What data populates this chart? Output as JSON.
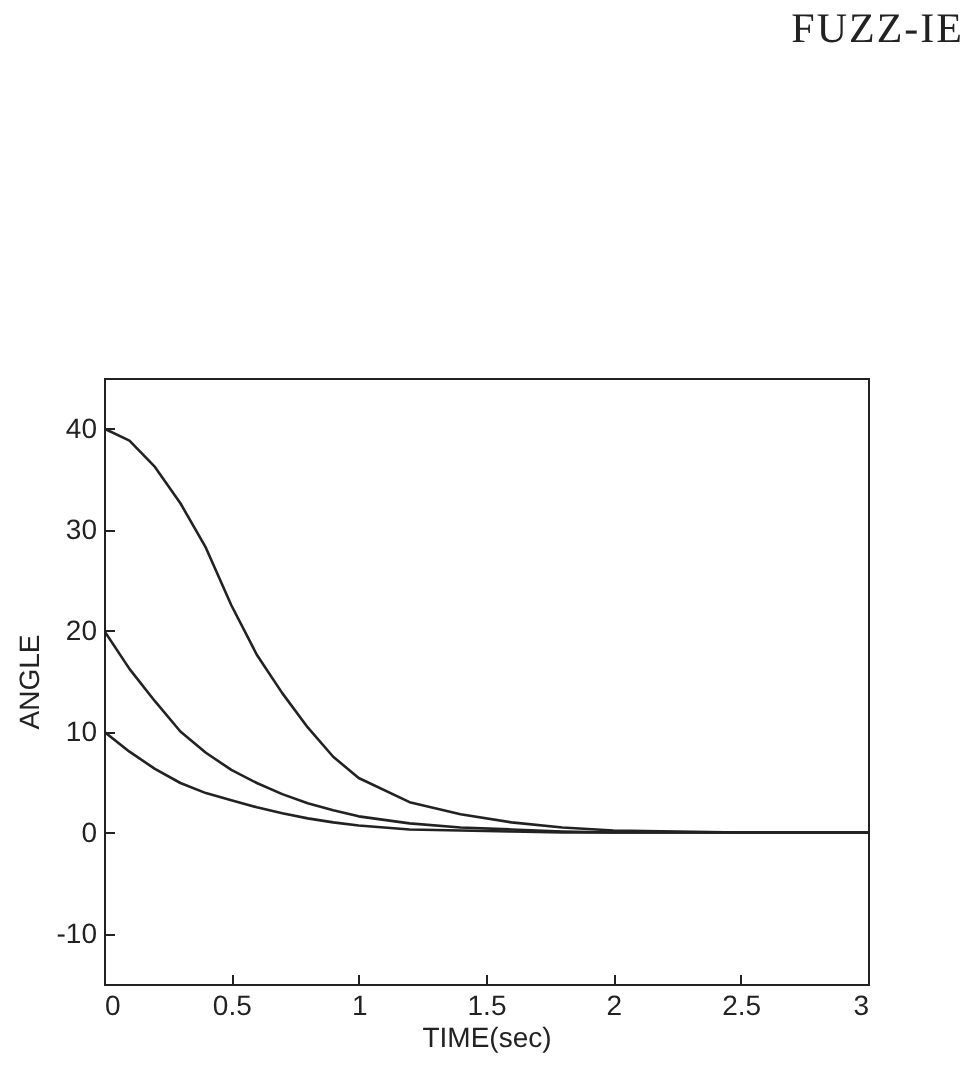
{
  "chart_data": {
    "type": "line",
    "xlabel": "TIME(sec)",
    "ylabel": "ANGLE",
    "annotations": [
      "FUZZ-IE"
    ],
    "x": [
      0,
      0.1,
      0.2,
      0.3,
      0.4,
      0.5,
      0.6,
      0.7,
      0.8,
      0.9,
      1.0,
      1.2,
      1.4,
      1.6,
      1.8,
      2.0,
      2.5,
      3.0
    ],
    "series": [
      {
        "color": "#222222",
        "values": [
          40,
          38.8,
          36.2,
          32.6,
          28.2,
          22.5,
          17.6,
          13.8,
          10.4,
          7.5,
          5.4,
          3.0,
          1.8,
          1.0,
          0.5,
          0.2,
          0,
          0
        ]
      },
      {
        "color": "#222222",
        "values": [
          20,
          16.2,
          13.0,
          10.0,
          7.9,
          6.2,
          4.9,
          3.8,
          2.9,
          2.2,
          1.6,
          0.9,
          0.5,
          0.3,
          0.1,
          0,
          0,
          0
        ]
      },
      {
        "color": "#222222",
        "values": [
          10,
          8.0,
          6.3,
          4.9,
          3.9,
          3.2,
          2.5,
          1.9,
          1.4,
          1.0,
          0.7,
          0.3,
          0.2,
          0.1,
          0,
          0,
          0,
          0
        ]
      }
    ],
    "xlim": [
      0,
      3
    ],
    "xticks": [
      0,
      0.5,
      1,
      1.5,
      2,
      2.5,
      3
    ],
    "ylim": [
      -15,
      45
    ],
    "yticks": [
      -10,
      0,
      10,
      20,
      30,
      40
    ]
  }
}
